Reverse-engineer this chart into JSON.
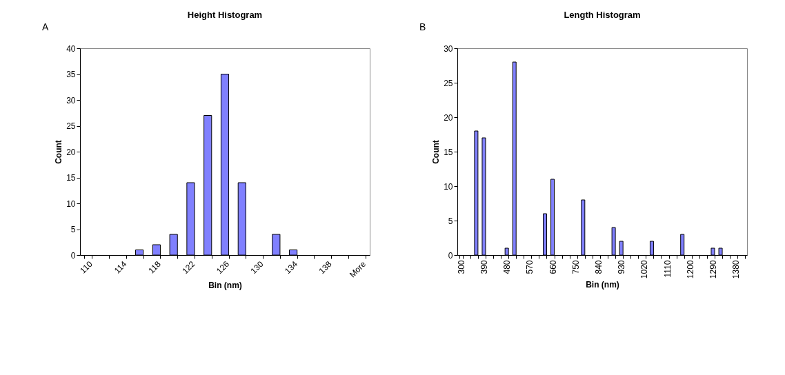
{
  "chart_data": [
    {
      "type": "bar",
      "title": "Height Histogram",
      "xlabel": "Bin (nm)",
      "ylabel": "Count",
      "annotations": [
        "A"
      ],
      "color": "#8080ff",
      "categories": [
        "110",
        null,
        "114",
        null,
        "118",
        null,
        "122",
        null,
        "126",
        null,
        "130",
        null,
        "134",
        null,
        "138",
        null,
        "More"
      ],
      "values": [
        0,
        0,
        0,
        1,
        2,
        4,
        14,
        27,
        35,
        14,
        0,
        4,
        1,
        0,
        0,
        0,
        0
      ],
      "ylim": [
        0,
        40
      ],
      "yticks": [
        0,
        5,
        10,
        15,
        20,
        25,
        30,
        35,
        40
      ],
      "grid": false
    },
    {
      "type": "bar",
      "title": "Length Histogram",
      "xlabel": "Bin (nm)",
      "ylabel": "Count",
      "annotations": [
        "B"
      ],
      "color": "#8080ff",
      "categories": [
        "300",
        null,
        null,
        "390",
        null,
        null,
        "480",
        null,
        null,
        "570",
        null,
        null,
        "660",
        null,
        null,
        "750",
        null,
        null,
        "840",
        null,
        null,
        "930",
        null,
        null,
        "1020",
        null,
        null,
        "1110",
        null,
        null,
        "1200",
        null,
        null,
        "1290",
        null,
        null,
        "1380",
        null
      ],
      "values": [
        0,
        0,
        18,
        17,
        0,
        0,
        1,
        28,
        0,
        0,
        0,
        6,
        11,
        0,
        0,
        0,
        8,
        0,
        0,
        0,
        4,
        2,
        0,
        0,
        0,
        2,
        0,
        0,
        0,
        3,
        0,
        0,
        0,
        1,
        1,
        0,
        0,
        0
      ],
      "ylim": [
        0,
        30
      ],
      "yticks": [
        0,
        5,
        10,
        15,
        20,
        25,
        30
      ],
      "grid": false
    }
  ]
}
